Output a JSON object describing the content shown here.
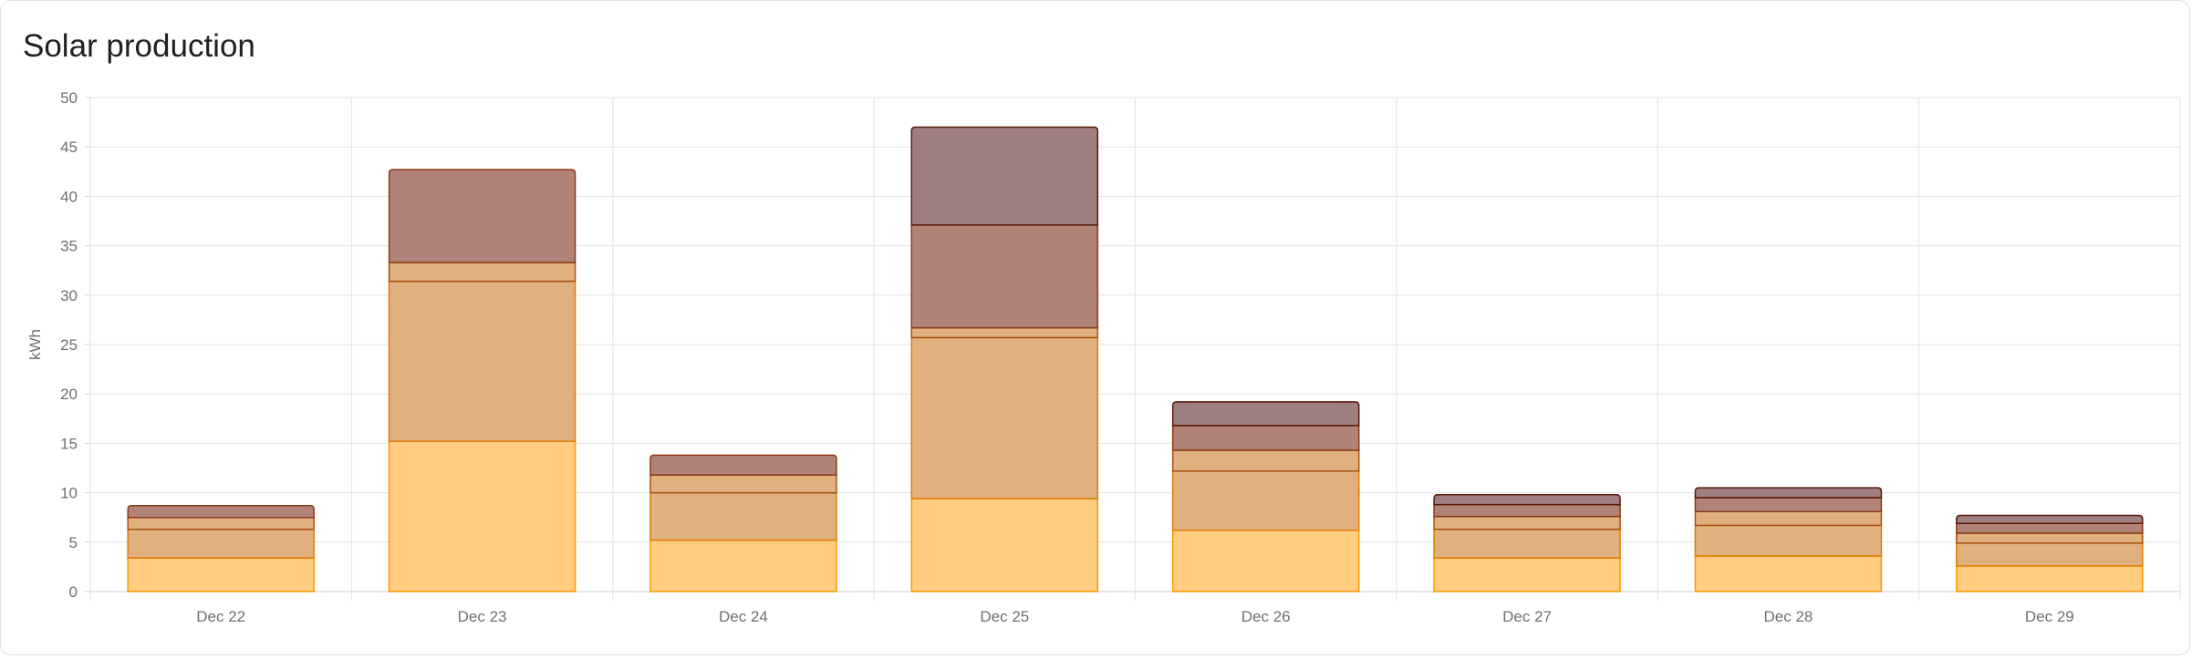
{
  "card": {
    "title": "Solar production"
  },
  "chart_data": {
    "type": "bar",
    "stacked": true,
    "title": "Solar production",
    "xlabel": "",
    "ylabel": "kWh",
    "ylim": [
      0,
      50
    ],
    "yticks": [
      0,
      5,
      10,
      15,
      20,
      25,
      30,
      35,
      40,
      45,
      50
    ],
    "grid": true,
    "categories": [
      "Dec 22",
      "Dec 23",
      "Dec 24",
      "Dec 25",
      "Dec 26",
      "Dec 27",
      "Dec 28",
      "Dec 29"
    ],
    "series": [
      {
        "fill": "#ffcc80",
        "stroke": "#ff9800",
        "values": [
          3.4,
          15.2,
          5.2,
          9.4,
          6.2,
          3.4,
          3.6,
          2.6
        ]
      },
      {
        "fill": "#e1b07f",
        "stroke": "#e07b00",
        "values": [
          2.9,
          16.2,
          4.8,
          16.3,
          6.0,
          2.9,
          3.1,
          2.3
        ]
      },
      {
        "fill": "#e1b07f",
        "stroke": "#a8520f",
        "values": [
          1.2,
          1.9,
          1.8,
          1.0,
          2.1,
          1.3,
          1.4,
          1.0
        ]
      },
      {
        "fill": "#b08379",
        "stroke": "#8b3a14",
        "values": [
          1.2,
          9.4,
          2.0,
          10.4,
          2.5,
          1.2,
          1.4,
          1.0
        ]
      },
      {
        "fill": "#9e7e7e",
        "stroke": "#5a1a0a",
        "values": [
          0,
          0,
          0,
          9.9,
          2.4,
          1.0,
          1.0,
          0.8
        ]
      }
    ]
  }
}
